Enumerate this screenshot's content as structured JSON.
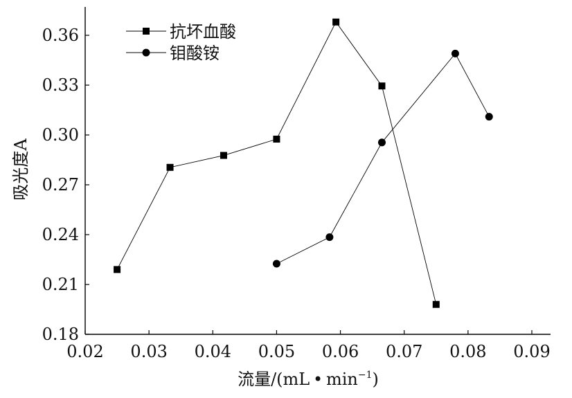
{
  "chart_data": {
    "type": "line",
    "title": "",
    "xlabel": "流量/(mL·min⁻¹)",
    "xlabel_parts": {
      "main": "流量/(mL • min",
      "superscript": "−1",
      "close": ")"
    },
    "ylabel": "吸光度A",
    "xlim": [
      0.02,
      0.095
    ],
    "ylim": [
      0.18,
      0.38
    ],
    "xticks": [
      0.02,
      0.03,
      0.04,
      0.05,
      0.06,
      0.07,
      0.08,
      0.09
    ],
    "xtick_labels": [
      "0.02",
      "0.03",
      "0.04",
      "0.05",
      "0.06",
      "0.07",
      "0.08",
      "0.09"
    ],
    "yticks": [
      0.18,
      0.21,
      0.24,
      0.27,
      0.3,
      0.33,
      0.36
    ],
    "ytick_labels": [
      "0.18",
      "0.21",
      "0.24",
      "0.27",
      "0.30",
      "0.33",
      "0.36"
    ],
    "grid": false,
    "legend_position": "top-left",
    "series": [
      {
        "name": "抗坏血酸",
        "marker": "square",
        "color": "#000000",
        "x": [
          0.025,
          0.0333,
          0.0417,
          0.05,
          0.0593,
          0.0665,
          0.075
        ],
        "y": [
          0.219,
          0.2805,
          0.2877,
          0.2975,
          0.368,
          0.3295,
          0.198
        ]
      },
      {
        "name": "钼酸铵",
        "marker": "circle",
        "color": "#000000",
        "x": [
          0.05,
          0.0583,
          0.0665,
          0.078,
          0.0833
        ],
        "y": [
          0.2225,
          0.2385,
          0.2955,
          0.349,
          0.311
        ]
      }
    ]
  }
}
